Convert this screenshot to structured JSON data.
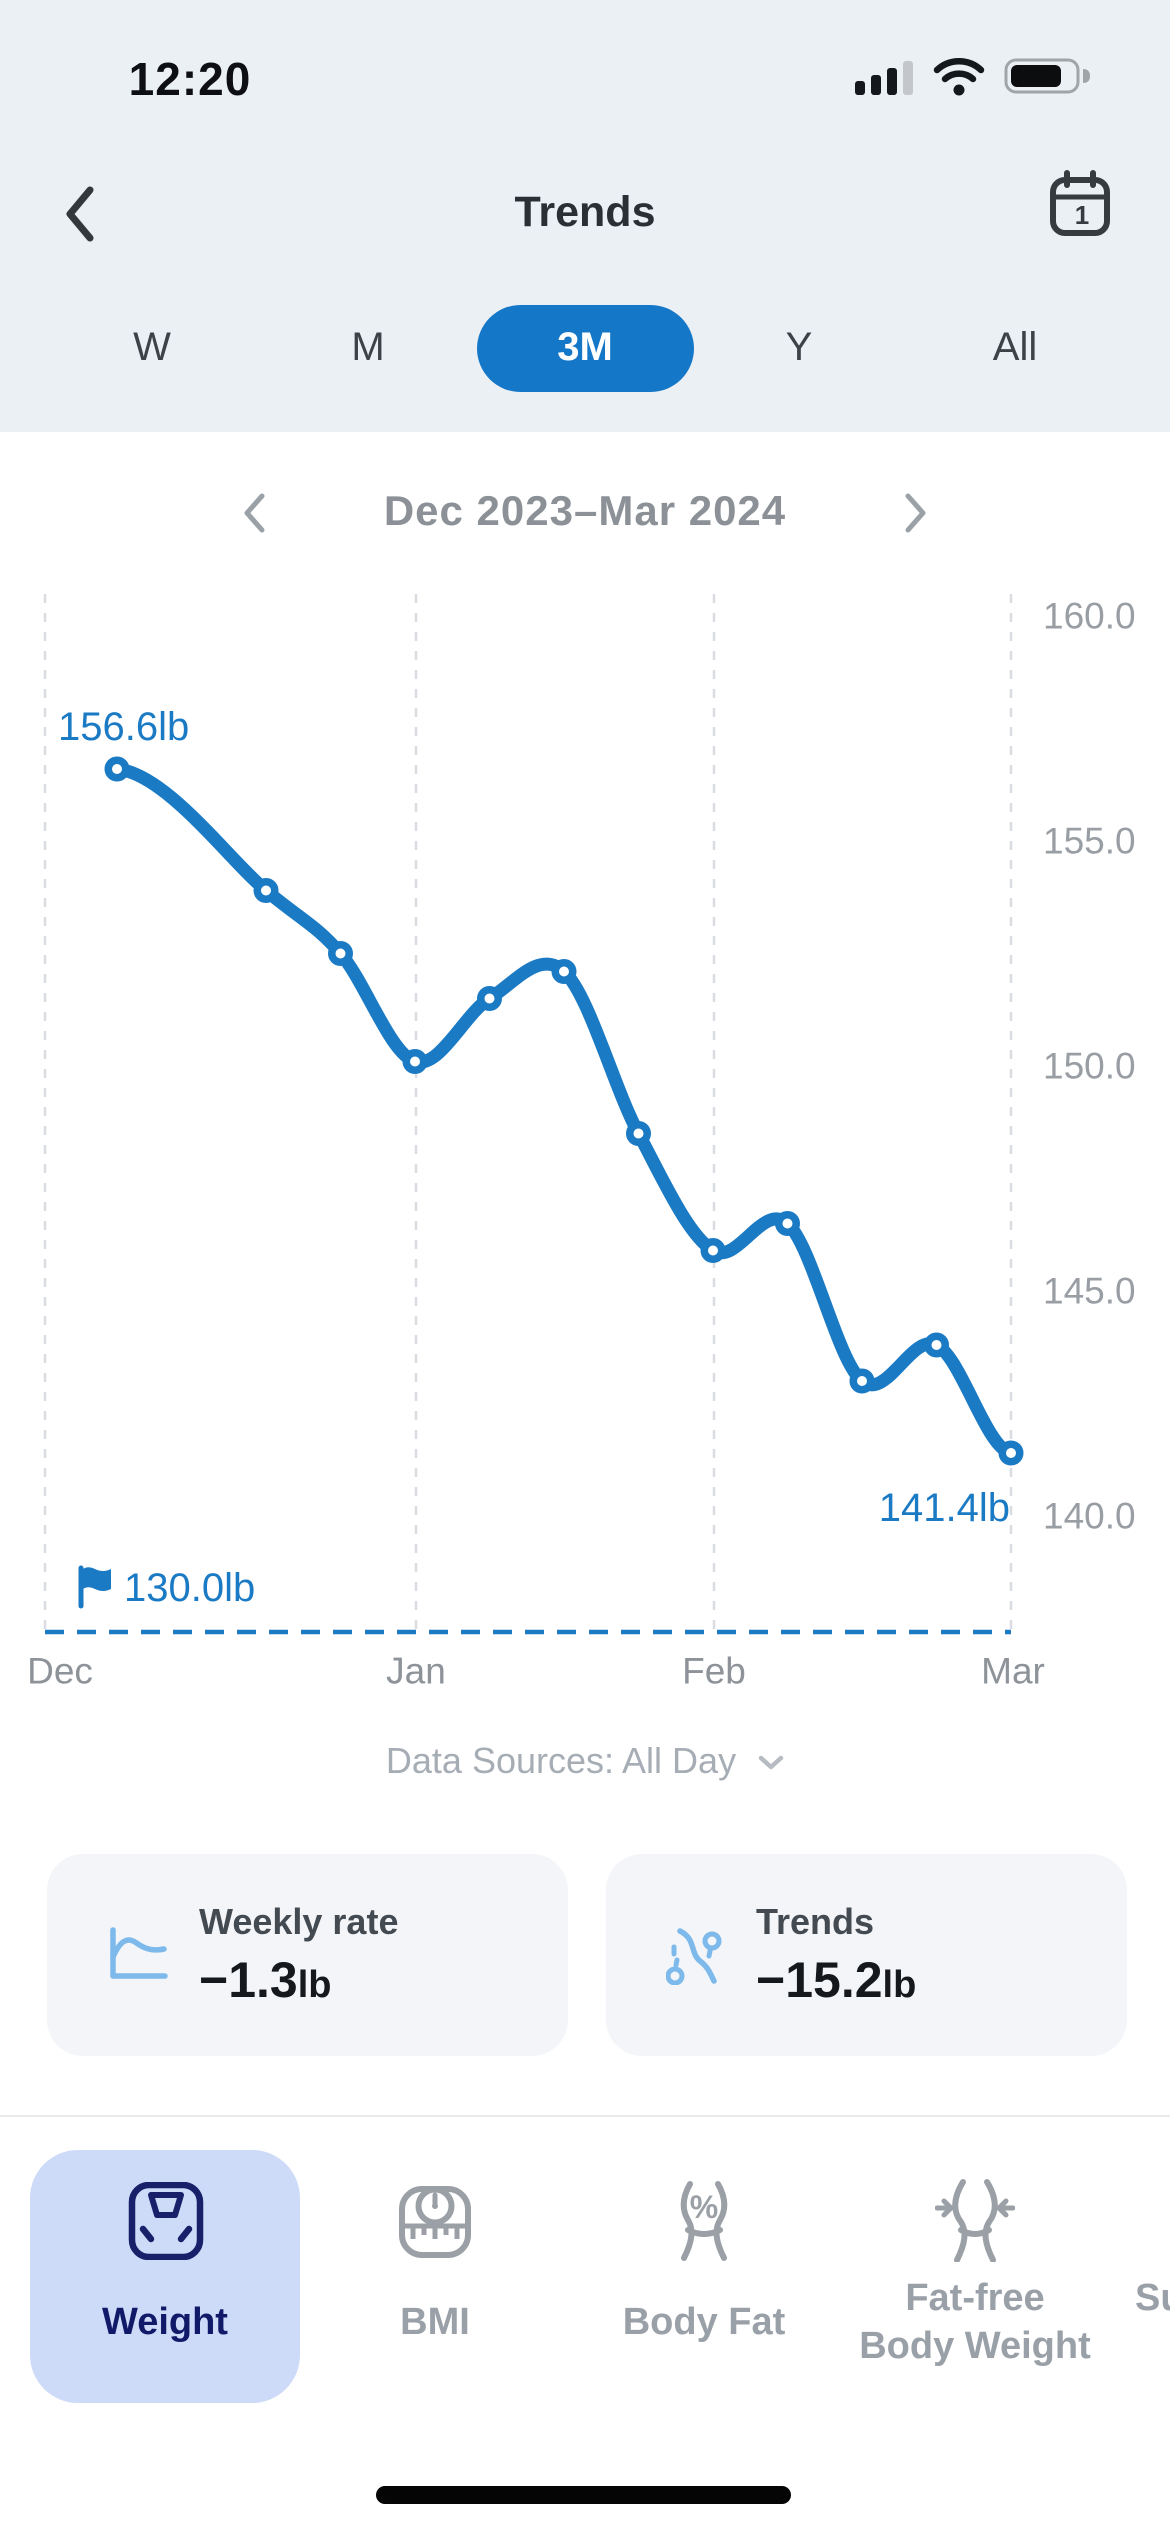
{
  "status_bar": {
    "time": "12:20"
  },
  "header": {
    "title": "Trends",
    "calendar_day": "1"
  },
  "range_tabs": {
    "options": [
      "W",
      "M",
      "3M",
      "Y",
      "All"
    ],
    "selected": "3M"
  },
  "period_nav": {
    "label": "Dec 2023–Mar 2024"
  },
  "chart_data": {
    "type": "line",
    "title": "Weight trend Dec 2023 – Mar 2024",
    "unit": "lb",
    "x_gridline_labels": [
      "Dec",
      "Jan",
      "Feb",
      "Mar"
    ],
    "y_ticks": [
      "160.0",
      "155.0",
      "150.0",
      "145.0",
      "140.0"
    ],
    "ylim_labels": [
      140,
      160
    ],
    "series": [
      {
        "name": "weight",
        "values": [
          156.6,
          153.9,
          152.5,
          150.1,
          151.5,
          152.1,
          148.5,
          145.9,
          146.5,
          143.0,
          143.8,
          141.4
        ]
      }
    ],
    "start_label": "156.6lb",
    "end_label": "141.4lb",
    "goal": {
      "label": "130.0lb",
      "value": 130.0
    },
    "line_color": "#1B7AC4",
    "grid": "vertical-dashed",
    "legend": "none"
  },
  "data_sources": {
    "label": "Data Sources: All Day"
  },
  "summary_cards": [
    {
      "icon": "area-chart",
      "title": "Weekly rate",
      "value": "−1.3",
      "unit": "lb"
    },
    {
      "icon": "route",
      "title": "Trends",
      "value": "−15.2",
      "unit": "lb"
    }
  ],
  "tab_bar": {
    "items": [
      {
        "icon": "weight-scale",
        "label": "Weight",
        "selected": true
      },
      {
        "icon": "bmi-scale",
        "label": "BMI",
        "selected": false
      },
      {
        "icon": "body-fat",
        "label": "Body Fat",
        "selected": false
      },
      {
        "icon": "fat-free-body",
        "label": "Fat-free Body Weight",
        "lines": [
          "Fat-free",
          "Body Weight"
        ],
        "selected": false
      },
      {
        "icon": "clipped",
        "label": "Su",
        "selected": false
      }
    ]
  }
}
